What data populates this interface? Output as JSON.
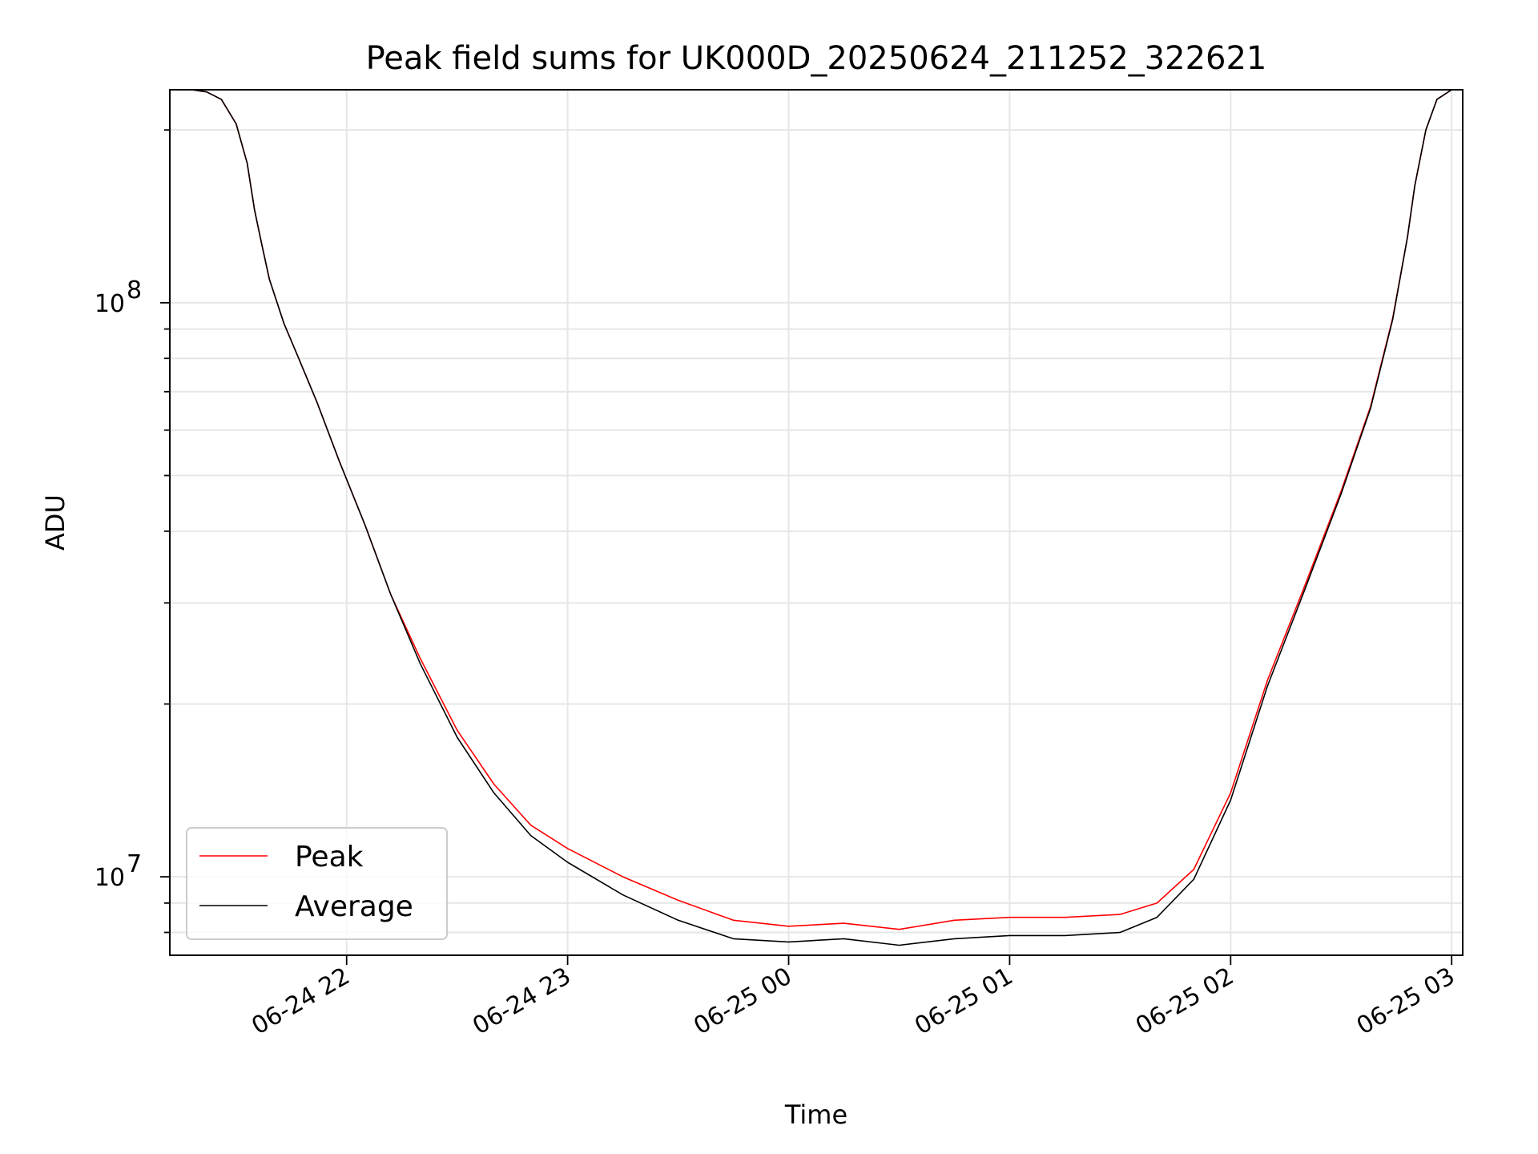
{
  "chart_data": {
    "type": "line",
    "title": "Peak field sums for UK000D_20250624_211252_322621",
    "xlabel": "Time",
    "ylabel": "ADU",
    "yscale": "log",
    "xlim": [
      "2025-06-24 21:12",
      "2025-06-25 03:03"
    ],
    "ylim": [
      7300000,
      235000000
    ],
    "grid": true,
    "legend_position": "lower-left",
    "x_ticks": [
      "06-24 22",
      "06-24 23",
      "06-25 00",
      "06-25 01",
      "06-25 02",
      "06-25 03"
    ],
    "y_major_ticks": [
      {
        "base": "10",
        "exp": "7",
        "value": 10000000
      },
      {
        "base": "10",
        "exp": "8",
        "value": 100000000
      }
    ],
    "series": [
      {
        "name": "Peak",
        "color": "#ff0000",
        "x": [
          "2025-06-24 21:12",
          "2025-06-24 21:18",
          "2025-06-24 21:22",
          "2025-06-24 21:26",
          "2025-06-24 21:30",
          "2025-06-24 21:33",
          "2025-06-24 21:35",
          "2025-06-24 21:37",
          "2025-06-24 21:39",
          "2025-06-24 21:43",
          "2025-06-24 21:47",
          "2025-06-24 21:52",
          "2025-06-24 21:58",
          "2025-06-24 22:05",
          "2025-06-24 22:12",
          "2025-06-24 22:20",
          "2025-06-24 22:30",
          "2025-06-24 22:40",
          "2025-06-24 22:50",
          "2025-06-24 23:00",
          "2025-06-24 23:15",
          "2025-06-24 23:30",
          "2025-06-24 23:45",
          "2025-06-25 00:00",
          "2025-06-25 00:15",
          "2025-06-25 00:30",
          "2025-06-25 00:45",
          "2025-06-25 01:00",
          "2025-06-25 01:15",
          "2025-06-25 01:30",
          "2025-06-25 01:40",
          "2025-06-25 01:50",
          "2025-06-25 02:00",
          "2025-06-25 02:10",
          "2025-06-25 02:20",
          "2025-06-25 02:30",
          "2025-06-25 02:38",
          "2025-06-25 02:44",
          "2025-06-25 02:48",
          "2025-06-25 02:50",
          "2025-06-25 02:53",
          "2025-06-25 02:56",
          "2025-06-25 03:00",
          "2025-06-25 03:03"
        ],
        "y": [
          235000000,
          235000000,
          233000000,
          226000000,
          205000000,
          175000000,
          145000000,
          126000000,
          110000000,
          92000000,
          80000000,
          67000000,
          53000000,
          41000000,
          31000000,
          24000000,
          18000000,
          14500000,
          12300000,
          11200000,
          10000000,
          9100000,
          8400000,
          8200000,
          8300000,
          8100000,
          8400000,
          8500000,
          8500000,
          8600000,
          9000000,
          10300000,
          14000000,
          22000000,
          32000000,
          47000000,
          66000000,
          94000000,
          130000000,
          160000000,
          200000000,
          226000000,
          235000000,
          235000000
        ]
      },
      {
        "name": "Average",
        "color": "#000000",
        "x": [
          "2025-06-24 21:12",
          "2025-06-24 21:18",
          "2025-06-24 21:22",
          "2025-06-24 21:26",
          "2025-06-24 21:30",
          "2025-06-24 21:33",
          "2025-06-24 21:35",
          "2025-06-24 21:37",
          "2025-06-24 21:39",
          "2025-06-24 21:43",
          "2025-06-24 21:47",
          "2025-06-24 21:52",
          "2025-06-24 21:58",
          "2025-06-24 22:05",
          "2025-06-24 22:12",
          "2025-06-24 22:20",
          "2025-06-24 22:30",
          "2025-06-24 22:40",
          "2025-06-24 22:50",
          "2025-06-24 23:00",
          "2025-06-24 23:15",
          "2025-06-24 23:30",
          "2025-06-24 23:45",
          "2025-06-25 00:00",
          "2025-06-25 00:15",
          "2025-06-25 00:30",
          "2025-06-25 00:45",
          "2025-06-25 01:00",
          "2025-06-25 01:15",
          "2025-06-25 01:30",
          "2025-06-25 01:40",
          "2025-06-25 01:50",
          "2025-06-25 02:00",
          "2025-06-25 02:10",
          "2025-06-25 02:20",
          "2025-06-25 02:30",
          "2025-06-25 02:38",
          "2025-06-25 02:44",
          "2025-06-25 02:48",
          "2025-06-25 02:50",
          "2025-06-25 02:53",
          "2025-06-25 02:56",
          "2025-06-25 03:00",
          "2025-06-25 03:03"
        ],
        "y": [
          235000000,
          235000000,
          233000000,
          226000000,
          205000000,
          175000000,
          145000000,
          126000000,
          110000000,
          92000000,
          80000000,
          67000000,
          53000000,
          41000000,
          31000000,
          23500000,
          17500000,
          14000000,
          11800000,
          10600000,
          9300000,
          8400000,
          7800000,
          7700000,
          7800000,
          7600000,
          7800000,
          7900000,
          7900000,
          8000000,
          8500000,
          9900000,
          13600000,
          21500000,
          31500000,
          46500000,
          65500000,
          93500000,
          130000000,
          160000000,
          200000000,
          226000000,
          235000000,
          235000000
        ]
      }
    ]
  }
}
